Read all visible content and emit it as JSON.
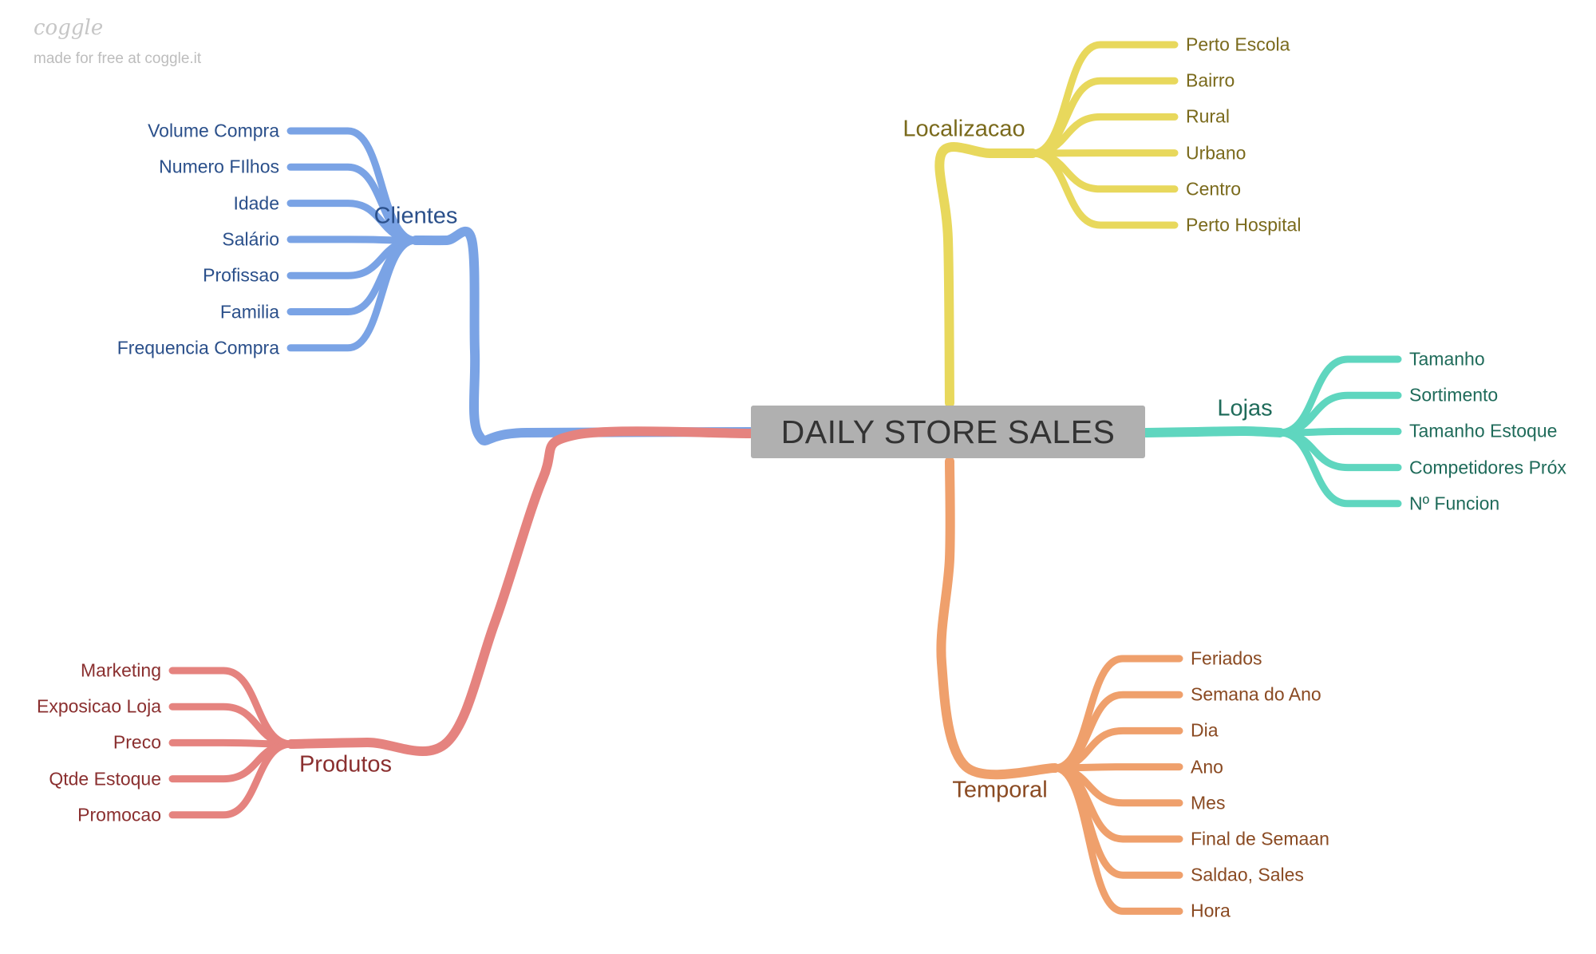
{
  "branding": {
    "logo": "coggle",
    "tagline": "made for free at coggle.it"
  },
  "root": {
    "label": "DAILY STORE SALES",
    "fill": "#b0b0b0",
    "text_color": "#333333"
  },
  "branches": [
    {
      "key": "clientes",
      "label": "Clientes",
      "side": "left",
      "stroke": "#7aa3e5",
      "text": "#2a4f8a",
      "leaves": [
        "Volume Compra",
        "Numero FIlhos",
        "Idade",
        "Salário",
        "Profissao",
        "Familia",
        "Frequencia Compra"
      ]
    },
    {
      "key": "produtos",
      "label": "Produtos",
      "side": "left",
      "stroke": "#e5837f",
      "text": "#8a2f2f",
      "leaves": [
        "Marketing",
        "Exposicao Loja",
        "Preco",
        "Qtde Estoque",
        "Promocao"
      ]
    },
    {
      "key": "localizacao",
      "label": "Localizacao",
      "side": "right",
      "stroke": "#e8d85c",
      "text": "#7a6a1c",
      "leaves": [
        "Perto Escola",
        "Bairro",
        "Rural",
        "Urbano",
        "Centro",
        "Perto Hospital"
      ]
    },
    {
      "key": "lojas",
      "label": "Lojas",
      "side": "right",
      "stroke": "#5fd6bf",
      "text": "#1f6b5a",
      "leaves": [
        "Tamanho",
        "Sortimento",
        "Tamanho Estoque",
        "Competidores Próx",
        "Nº Funcion"
      ]
    },
    {
      "key": "temporal",
      "label": "Temporal",
      "side": "right",
      "stroke": "#efa06c",
      "text": "#8a4a22",
      "leaves": [
        "Feriados",
        "Semana do Ano",
        "Dia",
        "Ano",
        "Mes",
        "Final de Semaan",
        "Saldao, Sales",
        "Hora"
      ]
    }
  ]
}
